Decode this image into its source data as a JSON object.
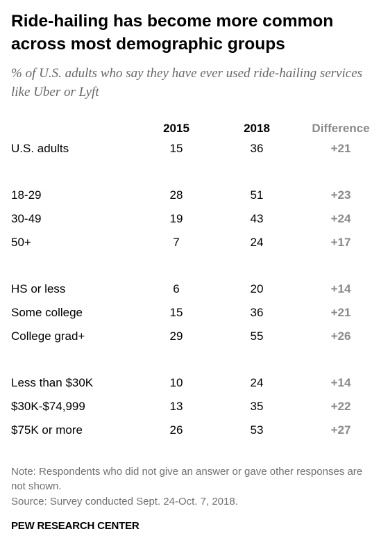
{
  "chart_data": {
    "type": "table",
    "title": "Ride-hailing has become more common across most demographic groups",
    "subtitle": "% of U.S. adults who say they have ever used ride-hailing services like Uber or Lyft",
    "columns": [
      "2015",
      "2018",
      "Difference"
    ],
    "rows": [
      {
        "label": "U.S. adults",
        "v2015": "15",
        "v2018": "36",
        "diff": "+21"
      },
      {
        "label": "18-29",
        "v2015": "28",
        "v2018": "51",
        "diff": "+23"
      },
      {
        "label": "30-49",
        "v2015": "19",
        "v2018": "43",
        "diff": "+24"
      },
      {
        "label": "50+",
        "v2015": "7",
        "v2018": "24",
        "diff": "+17"
      },
      {
        "label": "HS or less",
        "v2015": "6",
        "v2018": "20",
        "diff": "+14"
      },
      {
        "label": "Some college",
        "v2015": "15",
        "v2018": "36",
        "diff": "+21"
      },
      {
        "label": "College grad+",
        "v2015": "29",
        "v2018": "55",
        "diff": "+26"
      },
      {
        "label": "Less than $30K",
        "v2015": "10",
        "v2018": "24",
        "diff": "+14"
      },
      {
        "label": "$30K-$74,999",
        "v2015": "13",
        "v2018": "35",
        "diff": "+22"
      },
      {
        "label": "$75K or more",
        "v2015": "26",
        "v2018": "53",
        "diff": "+27"
      }
    ],
    "note": "Note: Respondents who did not give an answer or gave other responses are not shown.",
    "source": "Source: Survey conducted Sept. 24-Oct. 7, 2018.",
    "org": "PEW RESEARCH CENTER",
    "colors": {
      "text": "#000000",
      "subtitle": "#666666",
      "difference": "#8a8a8a",
      "footnote": "#6f6f6f"
    }
  }
}
